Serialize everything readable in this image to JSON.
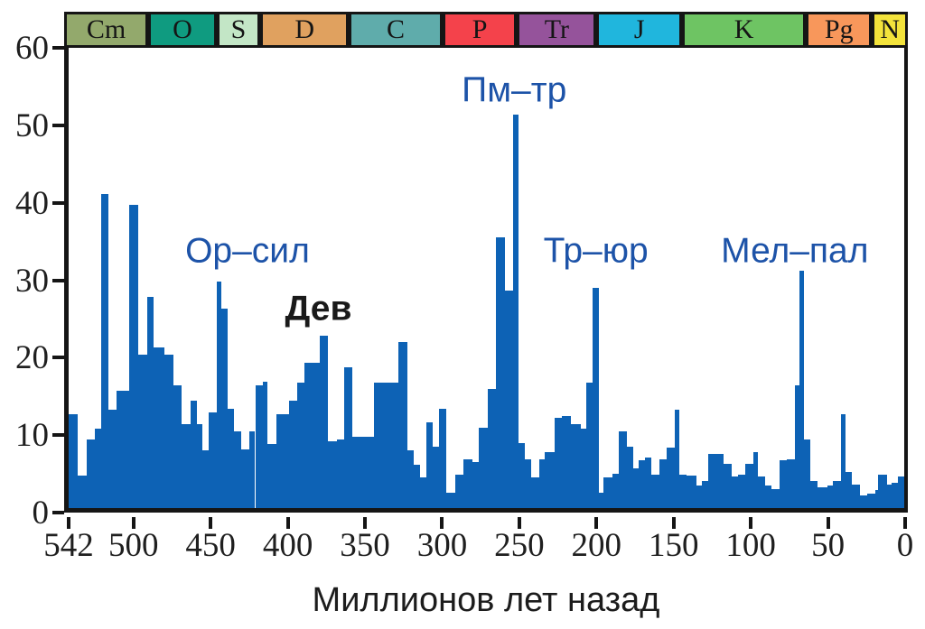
{
  "colors": {
    "bar": "#0d62b5",
    "axis": "#151515",
    "annotation_blue": "#1d53a8",
    "annotation_black": "#1a1a1a",
    "background": "#ffffff"
  },
  "chart_data": {
    "type": "bar",
    "title": "",
    "xlabel": "Миллионов лет назад",
    "ylabel": "",
    "xlim": [
      542,
      0
    ],
    "ylim": [
      0,
      60
    ],
    "grid": false,
    "legend": null,
    "x_ticks": [
      542,
      500,
      450,
      400,
      350,
      300,
      250,
      200,
      150,
      100,
      50,
      0
    ],
    "y_ticks": [
      0,
      10,
      20,
      30,
      40,
      50,
      60
    ],
    "x_units": "Ma",
    "periods": [
      {
        "label": "Cm",
        "from": 542,
        "to": 488,
        "color": "#93a96c"
      },
      {
        "label": "O",
        "from": 488,
        "to": 444,
        "color": "#0f9b80"
      },
      {
        "label": "S",
        "from": 444,
        "to": 416,
        "color": "#c3e6c6"
      },
      {
        "label": "D",
        "from": 416,
        "to": 359,
        "color": "#e0a15f"
      },
      {
        "label": "C",
        "from": 359,
        "to": 299,
        "color": "#5facab"
      },
      {
        "label": "P",
        "from": 299,
        "to": 251,
        "color": "#f4424b"
      },
      {
        "label": "Tr",
        "from": 251,
        "to": 200,
        "color": "#95539b"
      },
      {
        "label": "J",
        "from": 200,
        "to": 145,
        "color": "#20b6dd"
      },
      {
        "label": "K",
        "from": 145,
        "to": 65.5,
        "color": "#6ec463"
      },
      {
        "label": "Pg",
        "from": 65.5,
        "to": 23,
        "color": "#f8975b"
      },
      {
        "label": "N",
        "from": 23,
        "to": 0,
        "color": "#f3e33b"
      }
    ],
    "bars": [
      [
        542,
        536,
        12.2
      ],
      [
        536,
        530,
        4.2
      ],
      [
        530,
        525,
        9
      ],
      [
        525,
        521,
        10.3
      ],
      [
        521,
        516,
        41
      ],
      [
        516,
        511,
        12.8
      ],
      [
        511,
        503,
        15.3
      ],
      [
        503,
        497,
        39.5
      ],
      [
        497,
        491,
        20
      ],
      [
        491,
        487,
        27.5
      ],
      [
        487,
        480,
        21
      ],
      [
        480,
        474,
        20
      ],
      [
        474,
        469,
        16
      ],
      [
        469,
        463,
        11
      ],
      [
        463,
        459,
        14
      ],
      [
        459,
        455,
        11
      ],
      [
        455,
        451,
        7.5
      ],
      [
        451,
        446,
        12.5
      ],
      [
        446,
        443,
        29.5
      ],
      [
        443,
        439,
        26
      ],
      [
        439,
        435,
        13
      ],
      [
        435,
        430,
        10
      ],
      [
        430,
        425,
        7.6
      ],
      [
        425,
        421,
        10
      ],
      [
        421,
        416,
        16
      ],
      [
        416,
        413,
        16.5
      ],
      [
        413,
        407,
        8.3
      ],
      [
        407,
        399,
        12.2
      ],
      [
        399,
        394,
        14
      ],
      [
        394,
        389,
        16.3
      ],
      [
        389,
        379,
        19
      ],
      [
        379,
        374,
        22.5
      ],
      [
        374,
        368,
        8.7
      ],
      [
        368,
        363,
        9
      ],
      [
        363,
        358,
        18.4
      ],
      [
        358,
        344,
        9.3
      ],
      [
        344,
        328,
        16.3
      ],
      [
        328,
        322,
        21.6
      ],
      [
        322,
        318,
        7.5
      ],
      [
        318,
        314,
        5.6
      ],
      [
        314,
        310,
        4
      ],
      [
        310,
        306,
        11.2
      ],
      [
        306,
        302,
        8
      ],
      [
        302,
        297,
        13
      ],
      [
        297,
        291,
        2
      ],
      [
        291,
        286,
        4.4
      ],
      [
        286,
        280,
        6.4
      ],
      [
        280,
        276,
        6
      ],
      [
        276,
        270,
        10.5
      ],
      [
        270,
        265,
        15.5
      ],
      [
        265,
        259,
        35.3
      ],
      [
        259,
        254,
        28.4
      ],
      [
        254,
        250,
        51.3
      ],
      [
        250,
        246,
        8.5
      ],
      [
        246,
        242,
        6.4
      ],
      [
        242,
        237,
        4
      ],
      [
        237,
        233,
        6.4
      ],
      [
        233,
        227,
        7.3
      ],
      [
        227,
        222,
        11.8
      ],
      [
        222,
        216,
        12
      ],
      [
        216,
        210,
        11
      ],
      [
        210,
        206,
        10.3
      ],
      [
        206,
        202,
        16.3
      ],
      [
        202,
        198,
        28.7
      ],
      [
        198,
        195,
        2
      ],
      [
        195,
        189,
        4
      ],
      [
        189,
        185,
        4.5
      ],
      [
        185,
        180,
        10
      ],
      [
        180,
        176,
        8
      ],
      [
        176,
        172,
        5.2
      ],
      [
        172,
        168,
        6.2
      ],
      [
        168,
        164,
        6.6
      ],
      [
        164,
        159,
        4.4
      ],
      [
        159,
        154,
        6.4
      ],
      [
        154,
        149,
        7.9
      ],
      [
        149,
        146,
        12.8
      ],
      [
        146,
        141,
        4.4
      ],
      [
        141,
        135,
        4.2
      ],
      [
        135,
        131,
        2.9
      ],
      [
        131,
        127,
        3.5
      ],
      [
        127,
        117,
        7.1
      ],
      [
        117,
        112,
        5.8
      ],
      [
        112,
        108,
        4.1
      ],
      [
        108,
        103,
        4.4
      ],
      [
        103,
        98,
        5.8
      ],
      [
        98,
        95,
        7.3
      ],
      [
        95,
        90,
        4.1
      ],
      [
        90,
        86,
        2.9
      ],
      [
        86,
        81,
        2.5
      ],
      [
        81,
        76,
        6.2
      ],
      [
        76,
        71,
        6.4
      ],
      [
        71,
        68,
        16
      ],
      [
        68,
        65,
        31
      ],
      [
        65,
        61,
        9
      ],
      [
        61,
        56,
        3.5
      ],
      [
        56,
        50,
        2.7
      ],
      [
        50,
        46,
        2.9
      ],
      [
        46,
        41,
        3.5
      ],
      [
        41,
        38,
        12.2
      ],
      [
        38,
        34,
        4.7
      ],
      [
        34,
        29,
        3.1
      ],
      [
        29,
        24,
        1.7
      ],
      [
        24,
        19,
        1.9
      ],
      [
        19,
        17,
        2.3
      ],
      [
        17,
        11,
        4.4
      ],
      [
        11,
        8,
        3.1
      ],
      [
        8,
        4,
        3.3
      ],
      [
        4,
        0,
        4.1
      ]
    ],
    "annotations": [
      {
        "name": "annotation-or-sil",
        "text": "Ор–сил",
        "t": 426,
        "v": 33.5,
        "color": "#1d53a8",
        "bold": false
      },
      {
        "name": "annotation-dev",
        "text": "Дев",
        "t": 380,
        "v": 26,
        "color": "#1a1a1a",
        "bold": true
      },
      {
        "name": "annotation-pm-tr",
        "text": "Пм–тр",
        "t": 253,
        "v": 54.5,
        "color": "#1d53a8",
        "bold": false
      },
      {
        "name": "annotation-tr-yur",
        "text": "Тр–юр",
        "t": 200,
        "v": 33.5,
        "color": "#1d53a8",
        "bold": false
      },
      {
        "name": "annotation-mel-pal",
        "text": "Мел–пал",
        "t": 71,
        "v": 33.5,
        "color": "#1d53a8",
        "bold": false
      }
    ]
  }
}
